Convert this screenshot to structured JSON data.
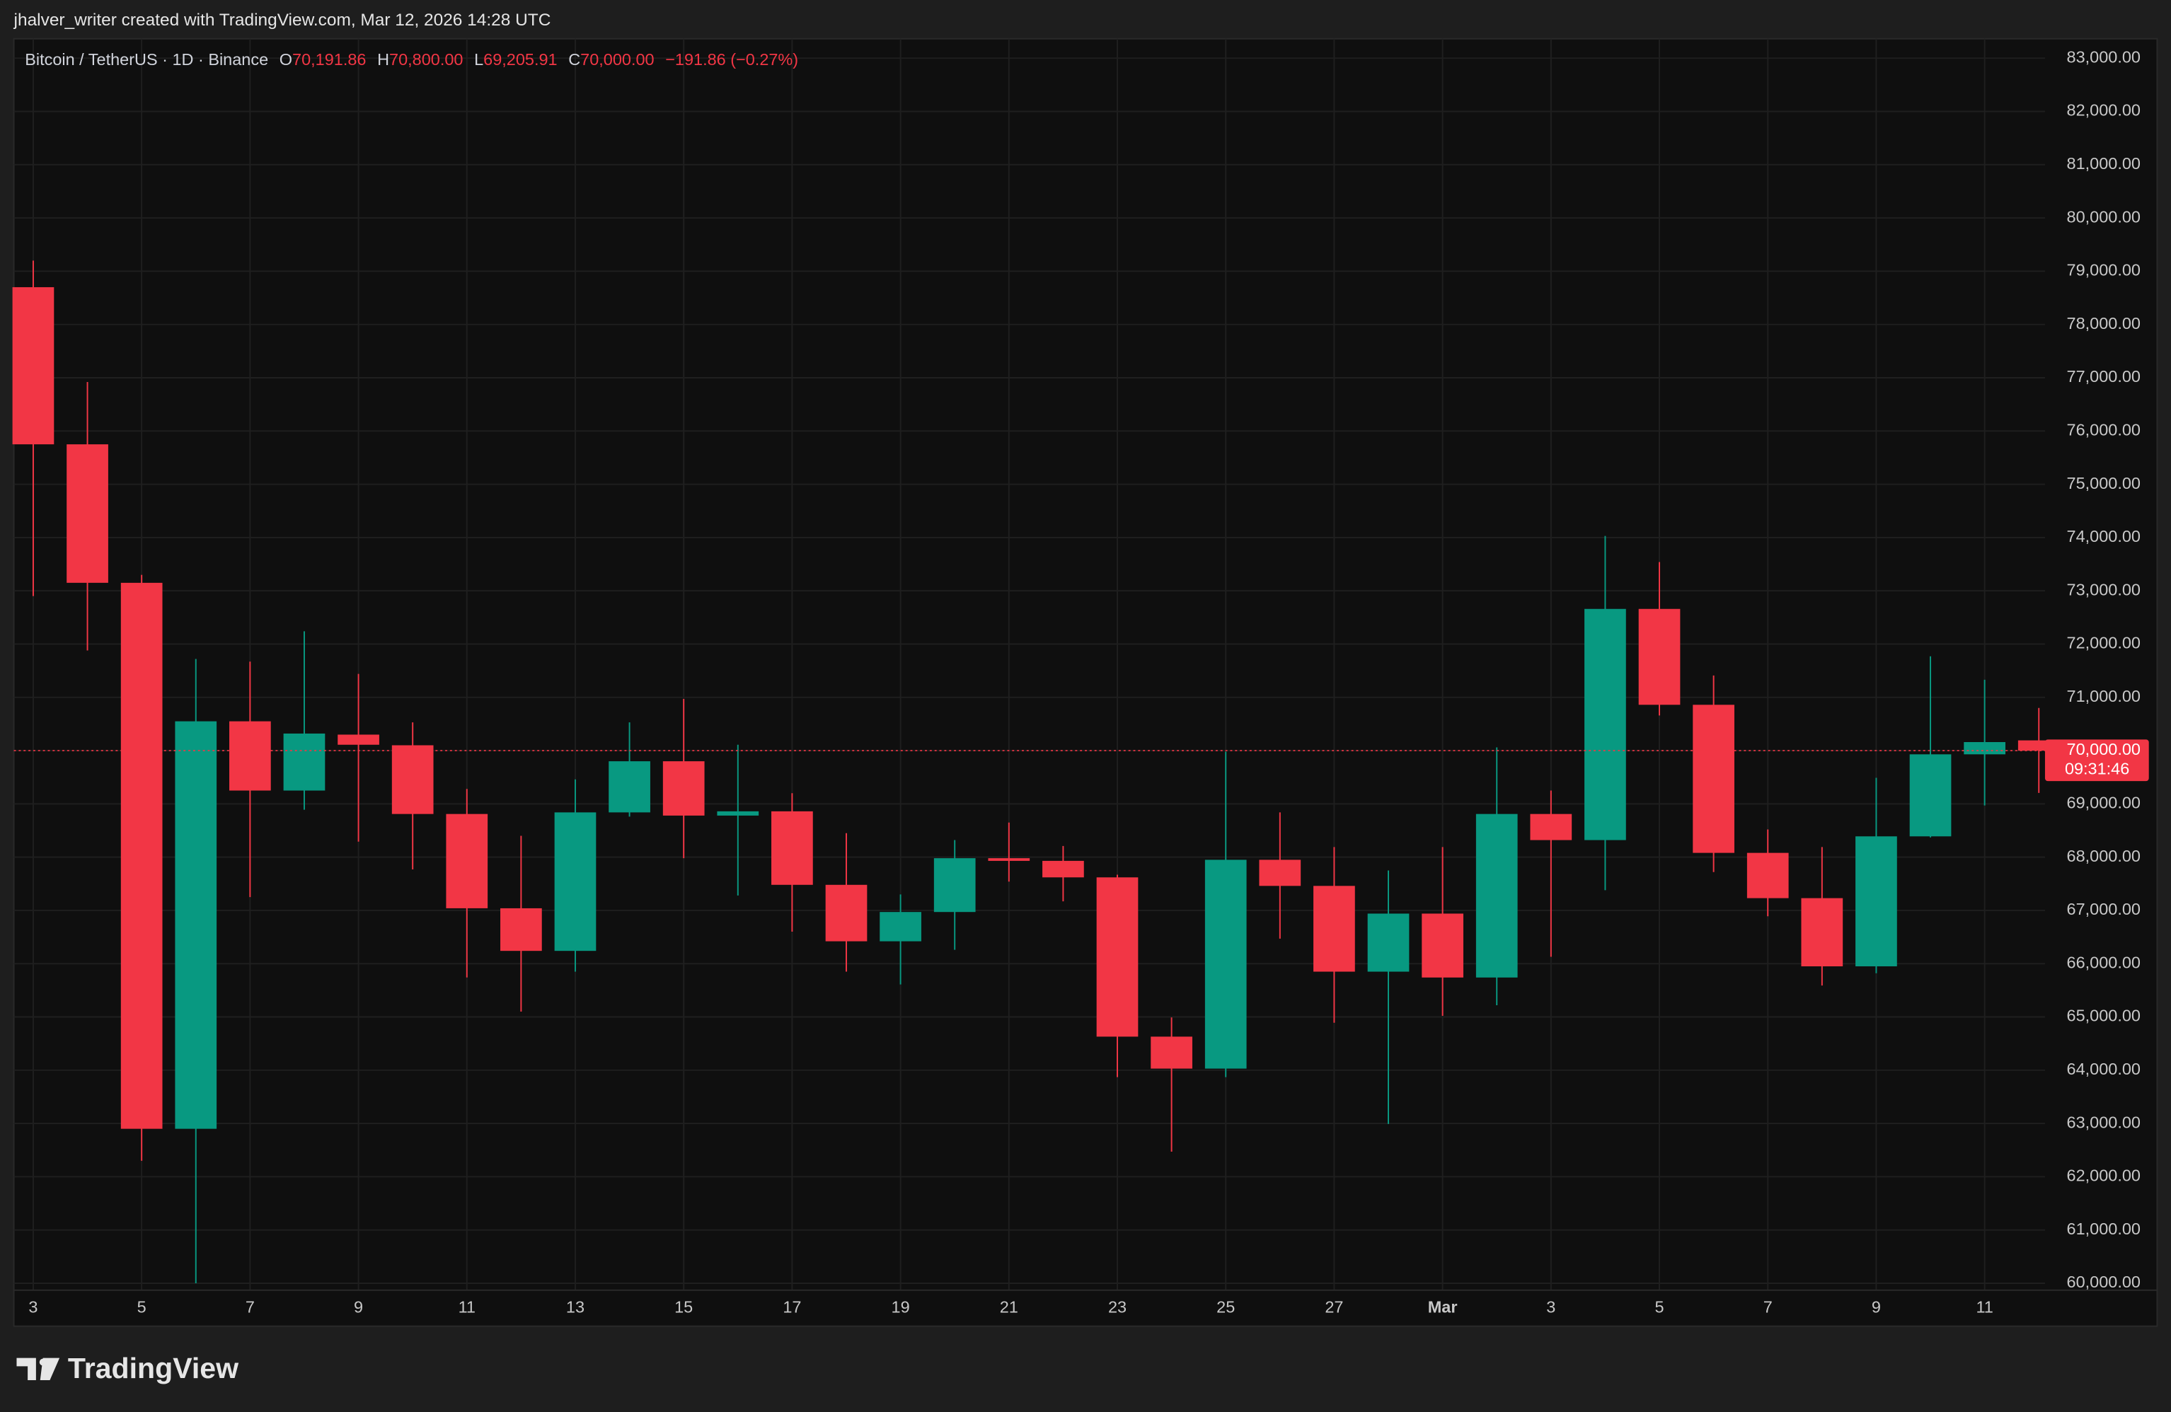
{
  "header": "jhalver_writer created with TradingView.com, Mar 12, 2026 14:28 UTC",
  "footer": "TradingView",
  "chart_data": {
    "type": "candlestick",
    "symbol": "Bitcoin / TetherUS · 1D · Binance",
    "ohlc_legend": [
      {
        "key": "O",
        "label": "70,191.86"
      },
      {
        "key": "H",
        "label": "70,800.00"
      },
      {
        "key": "L",
        "label": "69,205.91"
      },
      {
        "key": "C",
        "label": "70,000.00"
      }
    ],
    "change": "−191.86 (−0.27%)",
    "price_label": "70,000.00",
    "countdown": "09:31:46",
    "up_color": "#089981",
    "down_color": "#f23645",
    "categories": [
      "3",
      null,
      "5",
      null,
      "7",
      null,
      "9",
      null,
      "11",
      null,
      "13",
      null,
      "15",
      null,
      "17",
      null,
      "19",
      null,
      "21",
      null,
      "23",
      null,
      "25",
      null,
      "27",
      null,
      "Mar",
      null,
      "3",
      null,
      "5",
      null,
      "7",
      null,
      "9",
      null,
      "11",
      null
    ],
    "open": [
      78700,
      75750,
      73150,
      62900,
      70550,
      69250,
      70300,
      70100,
      68810,
      67040,
      66240,
      68840,
      69800,
      68780,
      68860,
      67480,
      66420,
      66970,
      67980,
      67930,
      67620,
      64630,
      64030,
      67950,
      67460,
      65850,
      66940,
      65740,
      68810,
      68320,
      72660,
      70860,
      68080,
      67230,
      65950,
      68390,
      69930,
      70191.86
    ],
    "high": [
      79200,
      76920,
      73300,
      71720,
      71670,
      72240,
      71440,
      70530,
      69280,
      68400,
      69460,
      70530,
      70970,
      70110,
      69200,
      68450,
      67300,
      68320,
      68650,
      68210,
      67670,
      64990,
      69980,
      68840,
      68190,
      67750,
      68190,
      70060,
      69250,
      74030,
      73540,
      71410,
      68520,
      68190,
      69490,
      71770,
      71330,
      70800
    ],
    "low": [
      72900,
      71880,
      62300,
      60000,
      67250,
      68890,
      68290,
      67770,
      65740,
      65100,
      65850,
      68760,
      67980,
      67280,
      66600,
      65850,
      65610,
      66260,
      67540,
      67170,
      63870,
      62470,
      63870,
      66470,
      64890,
      62990,
      65020,
      65220,
      66130,
      67380,
      70660,
      67720,
      66890,
      65590,
      65820,
      68370,
      68970,
      69205.91
    ],
    "close": [
      75750,
      73150,
      62900,
      70550,
      69250,
      70320,
      70110,
      68810,
      67040,
      66240,
      68840,
      69800,
      68780,
      68860,
      67480,
      66420,
      66970,
      67980,
      67930,
      67620,
      64630,
      64030,
      67950,
      67460,
      65850,
      66940,
      65740,
      68810,
      68320,
      72660,
      70860,
      68080,
      67230,
      65950,
      68390,
      69930,
      70160,
      70000
    ],
    "ylim": [
      60000,
      83000
    ],
    "yticks": [
      {
        "value": 60000,
        "label": "60,000.00"
      },
      {
        "value": 61000,
        "label": "61,000.00"
      },
      {
        "value": 62000,
        "label": "62,000.00"
      },
      {
        "value": 63000,
        "label": "63,000.00"
      },
      {
        "value": 64000,
        "label": "64,000.00"
      },
      {
        "value": 65000,
        "label": "65,000.00"
      },
      {
        "value": 66000,
        "label": "66,000.00"
      },
      {
        "value": 67000,
        "label": "67,000.00"
      },
      {
        "value": 68000,
        "label": "68,000.00"
      },
      {
        "value": 69000,
        "label": "69,000.00"
      },
      {
        "value": 70000,
        "label": "70,000.00"
      },
      {
        "value": 71000,
        "label": "71,000.00"
      },
      {
        "value": 72000,
        "label": "72,000.00"
      },
      {
        "value": 73000,
        "label": "73,000.00"
      },
      {
        "value": 74000,
        "label": "74,000.00"
      },
      {
        "value": 75000,
        "label": "75,000.00"
      },
      {
        "value": 76000,
        "label": "76,000.00"
      },
      {
        "value": 77000,
        "label": "77,000.00"
      },
      {
        "value": 78000,
        "label": "78,000.00"
      },
      {
        "value": 79000,
        "label": "79,000.00"
      },
      {
        "value": 80000,
        "label": "80,000.00"
      },
      {
        "value": 81000,
        "label": "81,000.00"
      },
      {
        "value": 82000,
        "label": "82,000.00"
      },
      {
        "value": 83000,
        "label": "83,000.00"
      }
    ],
    "grid": true
  }
}
